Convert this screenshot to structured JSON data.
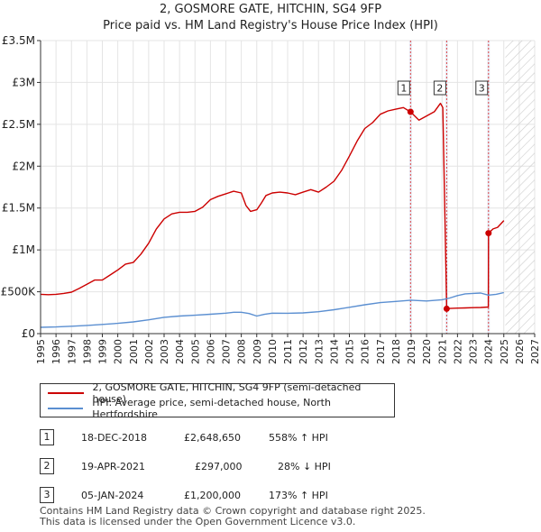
{
  "chart_data": {
    "type": "line",
    "title": "2, GOSMORE GATE, HITCHIN, SG4 9FP",
    "subtitle": "Price paid vs. HM Land Registry's House Price Index (HPI)",
    "xlim": [
      1995,
      2027
    ],
    "ylim": [
      0,
      3500000
    ],
    "x_ticks": [
      "1995",
      "1996",
      "1997",
      "1998",
      "1999",
      "2000",
      "2001",
      "2002",
      "2003",
      "2004",
      "2005",
      "2006",
      "2007",
      "2008",
      "2009",
      "2010",
      "2011",
      "2012",
      "2013",
      "2014",
      "2015",
      "2016",
      "2017",
      "2018",
      "2019",
      "2020",
      "2021",
      "2022",
      "2023",
      "2024",
      "2025",
      "2026",
      "2027"
    ],
    "y_ticks": [
      {
        "value": 0,
        "label": "£0"
      },
      {
        "value": 500000,
        "label": "£500K"
      },
      {
        "value": 1000000,
        "label": "£1M"
      },
      {
        "value": 1500000,
        "label": "£1.5M"
      },
      {
        "value": 2000000,
        "label": "£2M"
      },
      {
        "value": 2500000,
        "label": "£2.5M"
      },
      {
        "value": 3000000,
        "label": "£3M"
      },
      {
        "value": 3500000,
        "label": "£3.5M"
      }
    ],
    "grid": true,
    "forecast_from": 2025.1,
    "series": [
      {
        "name": "2, GOSMORE GATE, HITCHIN, SG4 9FP (semi-detached house)",
        "color": "#cc0000",
        "x": [
          1995.0,
          1995.5,
          1996.0,
          1996.5,
          1997.0,
          1997.5,
          1998.0,
          1998.5,
          1999.0,
          1999.5,
          2000.0,
          2000.5,
          2001.0,
          2001.5,
          2002.0,
          2002.5,
          2003.0,
          2003.5,
          2004.0,
          2004.5,
          2005.0,
          2005.5,
          2006.0,
          2006.5,
          2007.0,
          2007.5,
          2008.0,
          2008.3,
          2008.6,
          2009.0,
          2009.3,
          2009.6,
          2010.0,
          2010.5,
          2011.0,
          2011.5,
          2012.0,
          2012.5,
          2013.0,
          2013.5,
          2014.0,
          2014.5,
          2015.0,
          2015.5,
          2016.0,
          2016.5,
          2017.0,
          2017.5,
          2018.0,
          2018.5,
          2018.96,
          2019.5,
          2020.0,
          2020.5,
          2020.9,
          2021.05,
          2021.3,
          2021.5,
          2022.0,
          2022.5,
          2023.0,
          2023.5,
          2024.0,
          2024.01,
          2024.3,
          2024.6,
          2025.0
        ],
        "values": [
          470000,
          465000,
          470000,
          480000,
          495000,
          540000,
          590000,
          640000,
          640000,
          700000,
          760000,
          830000,
          850000,
          950000,
          1080000,
          1250000,
          1370000,
          1430000,
          1450000,
          1450000,
          1460000,
          1510000,
          1600000,
          1640000,
          1670000,
          1700000,
          1680000,
          1530000,
          1460000,
          1480000,
          1560000,
          1650000,
          1680000,
          1690000,
          1680000,
          1660000,
          1690000,
          1720000,
          1690000,
          1750000,
          1820000,
          1950000,
          2120000,
          2300000,
          2450000,
          2520000,
          2620000,
          2660000,
          2680000,
          2700000,
          2648650,
          2550000,
          2600000,
          2650000,
          2750000,
          2700000,
          297000,
          300000,
          305000,
          307000,
          310000,
          312000,
          318000,
          1200000,
          1250000,
          1270000,
          1350000
        ]
      },
      {
        "name": "HPI: Average price, semi-detached house, North Hertfordshire",
        "color": "#5b8fd1",
        "x": [
          1995,
          1996,
          1997,
          1998,
          1999,
          2000,
          2001,
          2002,
          2003,
          2004,
          2005,
          2006,
          2007,
          2007.5,
          2008,
          2008.5,
          2009,
          2009.5,
          2010,
          2011,
          2012,
          2013,
          2014,
          2015,
          2016,
          2017,
          2018,
          2019,
          2020,
          2021,
          2021.5,
          2022,
          2022.5,
          2023,
          2023.5,
          2024,
          2024.5,
          2025
        ],
        "values": [
          75000,
          80000,
          88000,
          98000,
          110000,
          123000,
          140000,
          165000,
          195000,
          210000,
          220000,
          232000,
          245000,
          255000,
          255000,
          240000,
          210000,
          230000,
          245000,
          243000,
          248000,
          262000,
          285000,
          315000,
          345000,
          370000,
          385000,
          400000,
          390000,
          405000,
          425000,
          455000,
          475000,
          480000,
          485000,
          460000,
          470000,
          490000
        ]
      }
    ],
    "transactions": [
      {
        "id": "1",
        "date": "18-DEC-2018",
        "x": 2018.96,
        "value": 2648650,
        "price": "£2,648,650",
        "hpi": "558% ↑ HPI"
      },
      {
        "id": "2",
        "date": "19-APR-2021",
        "x": 2021.3,
        "value": 297000,
        "price": "£297,000",
        "hpi": "28% ↓ HPI"
      },
      {
        "id": "3",
        "date": "05-JAN-2024",
        "x": 2024.01,
        "value": 1200000,
        "price": "£1,200,000",
        "hpi": "173% ↑ HPI"
      }
    ]
  },
  "legend": {
    "property": "2, GOSMORE GATE, HITCHIN, SG4 9FP (semi-detached house)",
    "hpi": "HPI: Average price, semi-detached house, North Hertfordshire"
  },
  "footer": {
    "line1": "Contains HM Land Registry data © Crown copyright and database right 2025.",
    "line2": "This data is licensed under the Open Government Licence v3.0."
  },
  "colors": {
    "property": "#cc0000",
    "hpi": "#5b8fd1",
    "grid": "#e4e4e4"
  }
}
